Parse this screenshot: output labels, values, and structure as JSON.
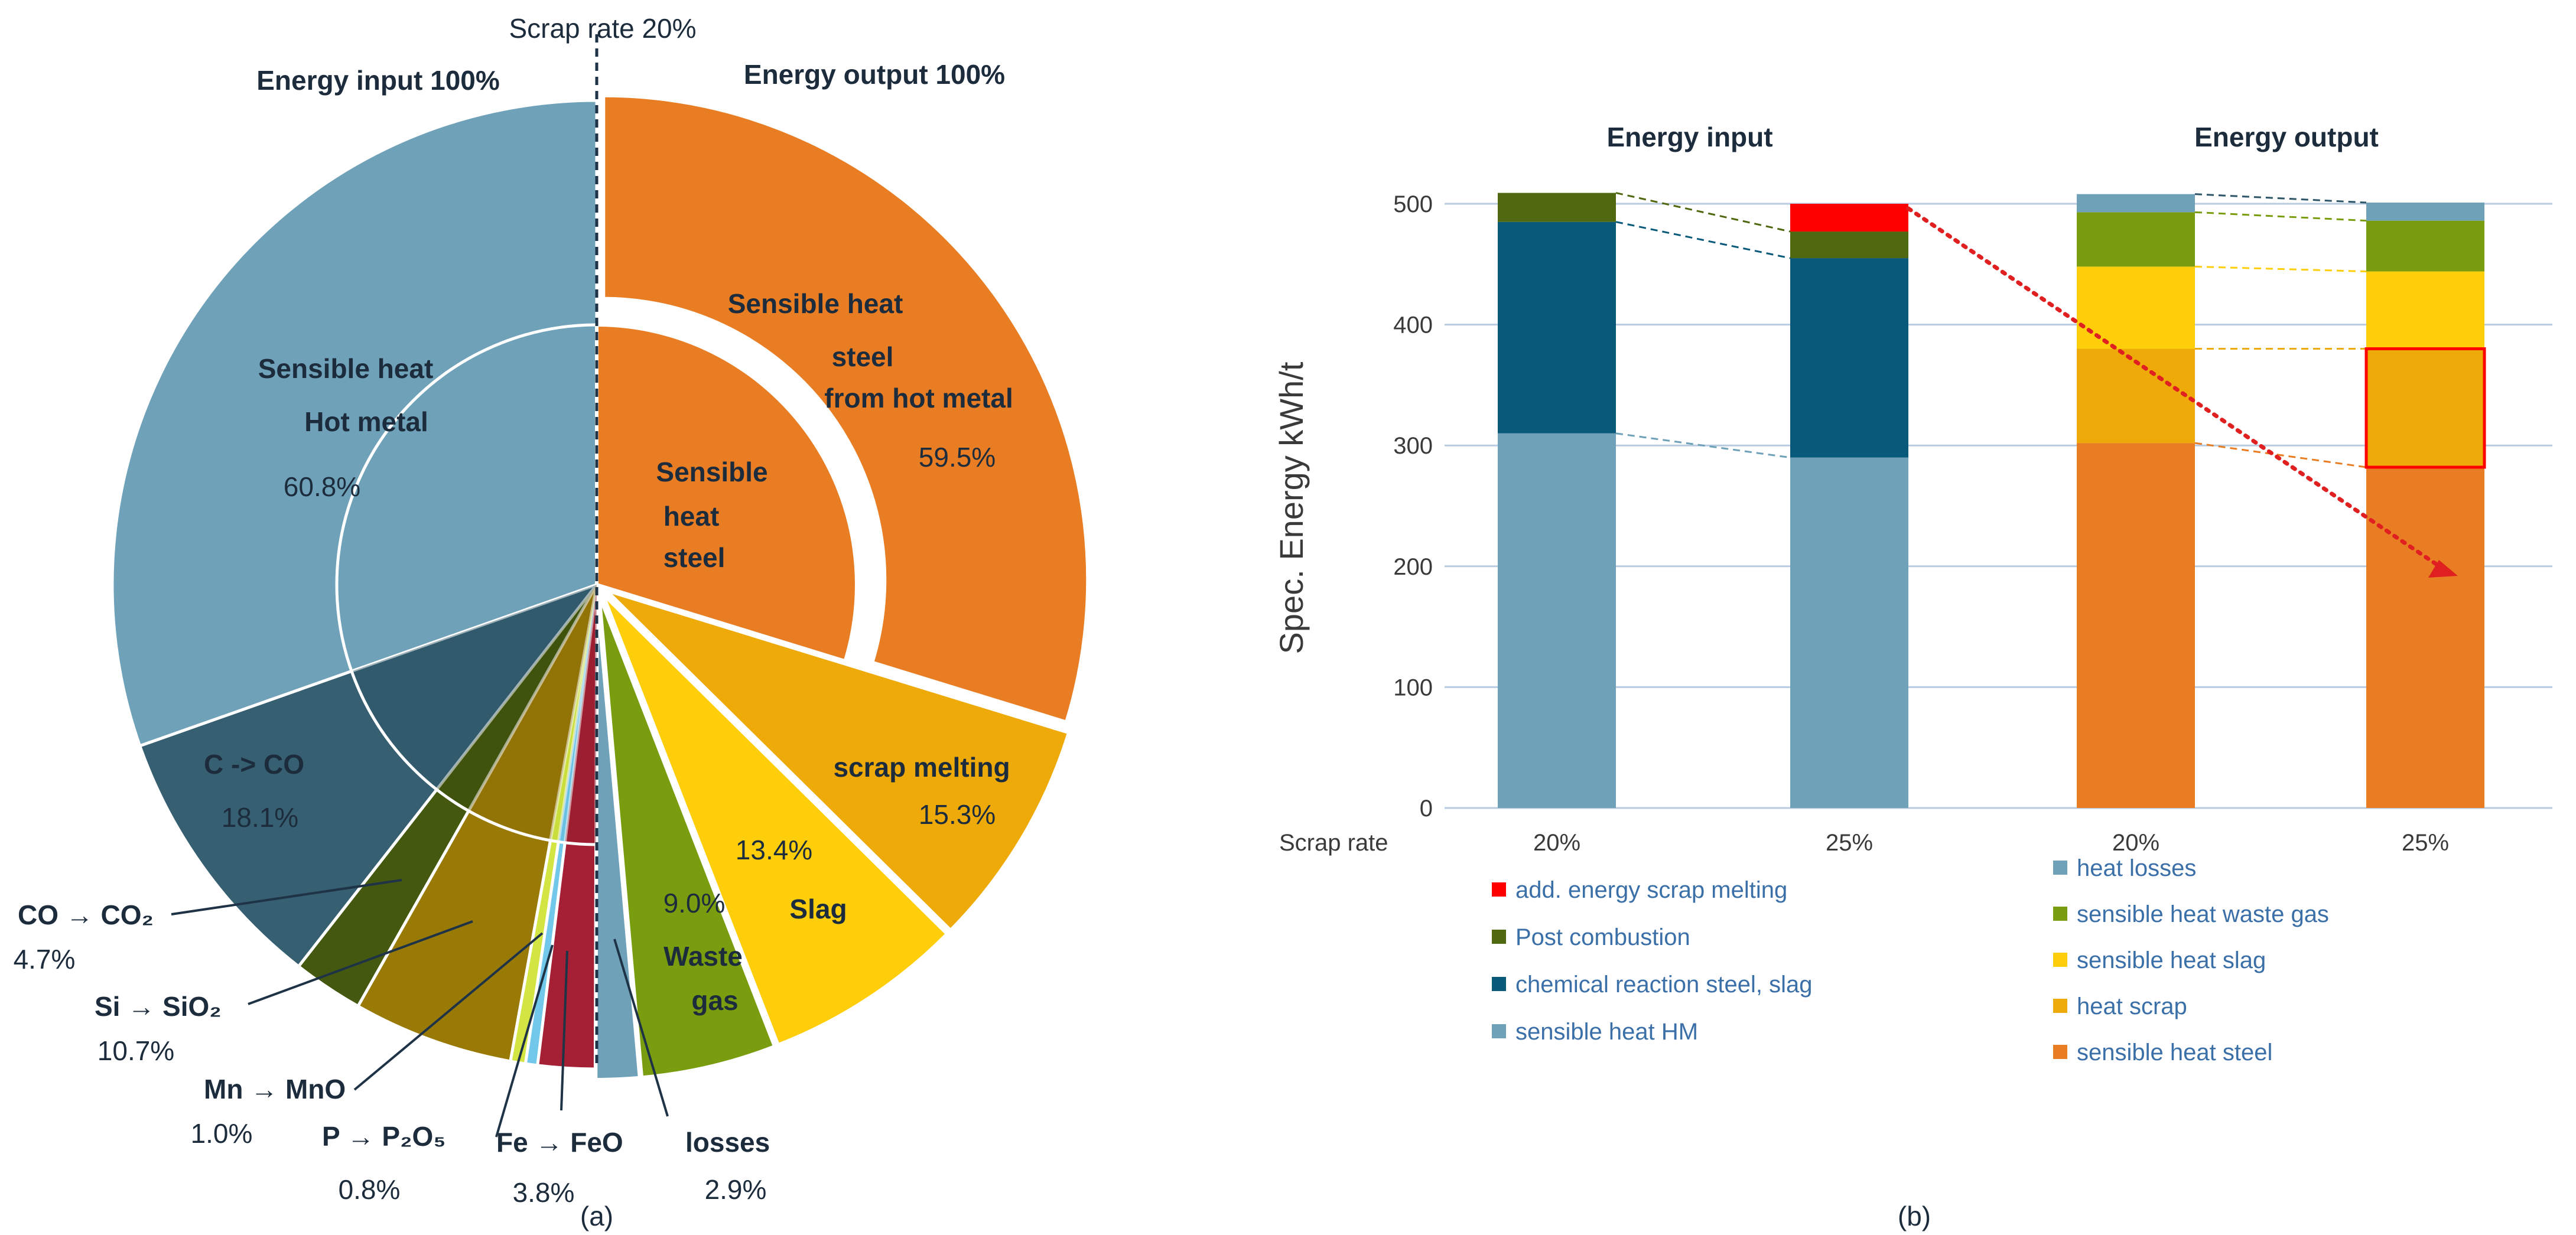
{
  "chart_data": [
    {
      "id": "a",
      "type": "pie",
      "title": "Scrap rate 20%",
      "panel_label": "(a)",
      "input": {
        "header": "Energy input 100%",
        "slices": [
          {
            "key": "hm",
            "label": "Sensible heat|Hot metal",
            "value": 60.8,
            "value_label": "60.8%",
            "color": "#6fa2b9"
          },
          {
            "key": "cco",
            "label": "C -> CO",
            "value": 18.1,
            "value_label": "18.1%",
            "color": "#365f72"
          },
          {
            "key": "co2",
            "label": "CO → CO₂",
            "value": 4.7,
            "value_label": "4.7%",
            "color": "#44590f"
          },
          {
            "key": "si",
            "label": "Si → SiO₂",
            "value": 10.7,
            "value_label": "10.7%",
            "color": "#9a7a06"
          },
          {
            "key": "mn",
            "label": "Mn → MnO",
            "value": 1.0,
            "value_label": "1.0%",
            "color": "#d2e542"
          },
          {
            "key": "p",
            "label": "P → P₂O₅",
            "value": 0.8,
            "value_label": "0.8%",
            "color": "#72c8ea"
          },
          {
            "key": "fe",
            "label": "Fe → FeO",
            "value": 3.8,
            "value_label": "3.8%",
            "color": "#a52034"
          }
        ]
      },
      "output": {
        "header": "Energy output 100%",
        "inner_label": "Sensible|heat|steel",
        "slices": [
          {
            "key": "steel",
            "label": "Sensible heat|steel|from hot metal",
            "value": 59.5,
            "value_label": "59.5%",
            "color": "#e87d24"
          },
          {
            "key": "scrap",
            "label": "scrap melting",
            "value": 15.3,
            "value_label": "15.3%",
            "color": "#eeaa08"
          },
          {
            "key": "slag",
            "label": "Slag",
            "value": 13.4,
            "value_label": "13.4%",
            "color": "#fece0b"
          },
          {
            "key": "waste",
            "label": "Waste|gas",
            "value": 9.0,
            "value_label": "9.0%",
            "color": "#7a9d10"
          },
          {
            "key": "losses",
            "label": "losses",
            "value": 2.9,
            "value_label": "2.9%",
            "color": "#6fa2b9"
          }
        ]
      }
    },
    {
      "id": "b",
      "type": "bar",
      "stacked": true,
      "panel_label": "(b)",
      "ylabel": "Spec. Energy kWh/t",
      "ylim": [
        0,
        500
      ],
      "yticks": [
        "0",
        "100",
        "200",
        "300",
        "400",
        "500"
      ],
      "group_labels": [
        "Energy input",
        "Energy output"
      ],
      "xaxis_title": "Scrap rate",
      "categories": [
        "20%",
        "25%",
        "20%",
        "25%"
      ],
      "input_series": [
        {
          "name": "sensible heat HM",
          "color": "#6fa2b9",
          "values": [
            310,
            290
          ]
        },
        {
          "name": "chemical reaction steel, slag",
          "color": "#08597a",
          "values": [
            175,
            165
          ]
        },
        {
          "name": "Post combustion",
          "color": "#50680f",
          "values": [
            24,
            22
          ]
        },
        {
          "name": "add. energy scrap melting",
          "color": "#ff0000",
          "values": [
            0,
            23
          ]
        }
      ],
      "output_series": [
        {
          "name": "sensible heat steel",
          "color": "#e87d24",
          "values": [
            302,
            282
          ]
        },
        {
          "name": "heat scrap",
          "color": "#eeaa08",
          "values": [
            78,
            98
          ]
        },
        {
          "name": "sensible heat slag",
          "color": "#fece0b",
          "values": [
            68,
            64
          ]
        },
        {
          "name": "sensible heat waste gas",
          "color": "#7a9d10",
          "values": [
            45,
            42
          ]
        },
        {
          "name": "heat losses",
          "color": "#6fa2b9",
          "values": [
            15,
            15
          ]
        }
      ]
    }
  ]
}
